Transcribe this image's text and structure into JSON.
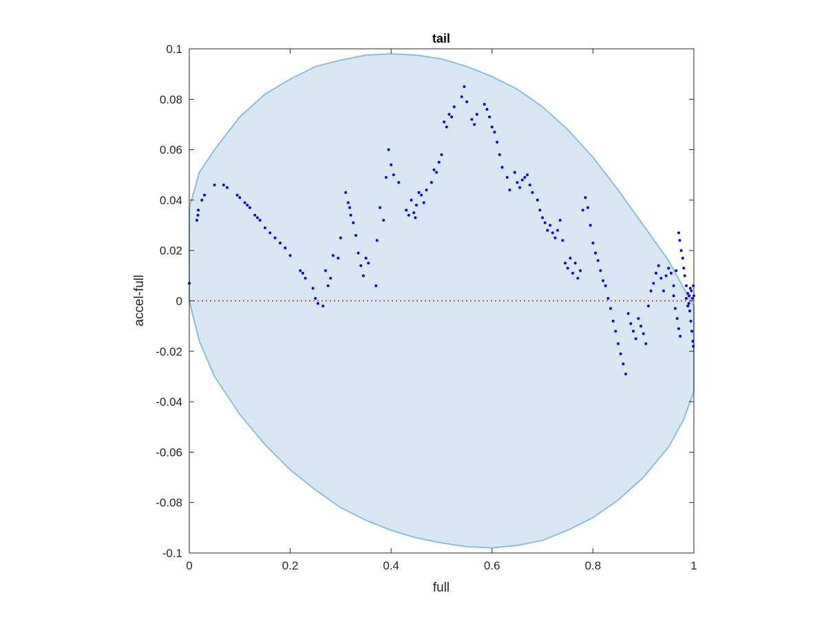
{
  "chart_data": {
    "type": "scatter",
    "title": "tail",
    "xlabel": "full",
    "ylabel": "accel-full",
    "xlim": [
      0,
      1
    ],
    "ylim": [
      -0.1,
      0.1
    ],
    "xticks": [
      "0",
      "0.2",
      "0.4",
      "0.6",
      "0.8",
      "1"
    ],
    "yticks": [
      "-0.1",
      "-0.08",
      "-0.06",
      "-0.04",
      "-0.02",
      "0",
      "0.02",
      "0.04",
      "0.06",
      "0.08",
      "0.1"
    ],
    "grid": false,
    "colors": {
      "points": "#0000ff",
      "band_fill": "#d8e7f3",
      "band_edge": "#88bde0",
      "zero_line": "#ff0000",
      "axes": "#262626"
    },
    "band": {
      "upper": [
        [
          0.0,
          0.037
        ],
        [
          0.02,
          0.051
        ],
        [
          0.05,
          0.06
        ],
        [
          0.1,
          0.073
        ],
        [
          0.15,
          0.082
        ],
        [
          0.2,
          0.088
        ],
        [
          0.25,
          0.093
        ],
        [
          0.3,
          0.0955
        ],
        [
          0.35,
          0.0975
        ],
        [
          0.4,
          0.098
        ],
        [
          0.45,
          0.0975
        ],
        [
          0.5,
          0.096
        ],
        [
          0.55,
          0.093
        ],
        [
          0.6,
          0.089
        ],
        [
          0.65,
          0.084
        ],
        [
          0.7,
          0.077
        ],
        [
          0.75,
          0.068
        ],
        [
          0.8,
          0.057
        ],
        [
          0.85,
          0.044
        ],
        [
          0.9,
          0.03
        ],
        [
          0.95,
          0.016
        ],
        [
          0.98,
          0.005
        ],
        [
          1.0,
          -0.002
        ]
      ],
      "lower": [
        [
          0.0,
          0.0
        ],
        [
          0.02,
          -0.016
        ],
        [
          0.05,
          -0.03
        ],
        [
          0.1,
          -0.045
        ],
        [
          0.15,
          -0.057
        ],
        [
          0.2,
          -0.067
        ],
        [
          0.25,
          -0.075
        ],
        [
          0.3,
          -0.082
        ],
        [
          0.35,
          -0.087
        ],
        [
          0.4,
          -0.091
        ],
        [
          0.45,
          -0.094
        ],
        [
          0.5,
          -0.096
        ],
        [
          0.55,
          -0.0975
        ],
        [
          0.6,
          -0.098
        ],
        [
          0.65,
          -0.097
        ],
        [
          0.7,
          -0.095
        ],
        [
          0.75,
          -0.091
        ],
        [
          0.8,
          -0.086
        ],
        [
          0.85,
          -0.079
        ],
        [
          0.9,
          -0.07
        ],
        [
          0.95,
          -0.058
        ],
        [
          0.98,
          -0.047
        ],
        [
          1.0,
          -0.036
        ]
      ]
    },
    "points": [
      [
        0.0,
        0.007
      ],
      [
        0.015,
        0.032
      ],
      [
        0.017,
        0.034
      ],
      [
        0.018,
        0.036
      ],
      [
        0.025,
        0.04
      ],
      [
        0.03,
        0.042
      ],
      [
        0.05,
        0.046
      ],
      [
        0.068,
        0.046
      ],
      [
        0.075,
        0.045
      ],
      [
        0.095,
        0.042
      ],
      [
        0.1,
        0.041
      ],
      [
        0.11,
        0.039
      ],
      [
        0.115,
        0.038
      ],
      [
        0.12,
        0.037
      ],
      [
        0.13,
        0.034
      ],
      [
        0.135,
        0.033
      ],
      [
        0.14,
        0.032
      ],
      [
        0.15,
        0.029
      ],
      [
        0.16,
        0.027
      ],
      [
        0.17,
        0.025
      ],
      [
        0.18,
        0.023
      ],
      [
        0.19,
        0.021
      ],
      [
        0.2,
        0.018
      ],
      [
        0.22,
        0.012
      ],
      [
        0.225,
        0.011
      ],
      [
        0.23,
        0.009
      ],
      [
        0.245,
        0.005
      ],
      [
        0.25,
        0.001
      ],
      [
        0.255,
        -0.001
      ],
      [
        0.265,
        -0.002
      ],
      [
        0.27,
        0.012
      ],
      [
        0.275,
        0.006
      ],
      [
        0.28,
        0.009
      ],
      [
        0.285,
        0.018
      ],
      [
        0.295,
        0.017
      ],
      [
        0.3,
        0.025
      ],
      [
        0.31,
        0.043
      ],
      [
        0.315,
        0.039
      ],
      [
        0.318,
        0.037
      ],
      [
        0.32,
        0.034
      ],
      [
        0.325,
        0.031
      ],
      [
        0.33,
        0.026
      ],
      [
        0.335,
        0.019
      ],
      [
        0.34,
        0.014
      ],
      [
        0.345,
        0.01
      ],
      [
        0.35,
        0.017
      ],
      [
        0.355,
        0.015
      ],
      [
        0.37,
        0.006
      ],
      [
        0.372,
        0.024
      ],
      [
        0.378,
        0.037
      ],
      [
        0.385,
        0.032
      ],
      [
        0.39,
        0.049
      ],
      [
        0.395,
        0.06
      ],
      [
        0.4,
        0.054
      ],
      [
        0.405,
        0.05
      ],
      [
        0.415,
        0.047
      ],
      [
        0.43,
        0.036
      ],
      [
        0.435,
        0.034
      ],
      [
        0.44,
        0.04
      ],
      [
        0.445,
        0.035
      ],
      [
        0.448,
        0.033
      ],
      [
        0.45,
        0.038
      ],
      [
        0.455,
        0.043
      ],
      [
        0.46,
        0.042
      ],
      [
        0.465,
        0.039
      ],
      [
        0.47,
        0.044
      ],
      [
        0.48,
        0.047
      ],
      [
        0.485,
        0.052
      ],
      [
        0.49,
        0.051
      ],
      [
        0.495,
        0.055
      ],
      [
        0.5,
        0.058
      ],
      [
        0.505,
        0.071
      ],
      [
        0.51,
        0.069
      ],
      [
        0.515,
        0.074
      ],
      [
        0.52,
        0.073
      ],
      [
        0.525,
        0.077
      ],
      [
        0.54,
        0.081
      ],
      [
        0.545,
        0.085
      ],
      [
        0.55,
        0.079
      ],
      [
        0.56,
        0.072
      ],
      [
        0.565,
        0.07
      ],
      [
        0.57,
        0.074
      ],
      [
        0.585,
        0.078
      ],
      [
        0.59,
        0.076
      ],
      [
        0.595,
        0.073
      ],
      [
        0.6,
        0.069
      ],
      [
        0.605,
        0.067
      ],
      [
        0.61,
        0.063
      ],
      [
        0.615,
        0.058
      ],
      [
        0.62,
        0.053
      ],
      [
        0.63,
        0.049
      ],
      [
        0.635,
        0.044
      ],
      [
        0.645,
        0.051
      ],
      [
        0.65,
        0.047
      ],
      [
        0.655,
        0.045
      ],
      [
        0.66,
        0.048
      ],
      [
        0.665,
        0.049
      ],
      [
        0.67,
        0.05
      ],
      [
        0.675,
        0.046
      ],
      [
        0.68,
        0.043
      ],
      [
        0.69,
        0.04
      ],
      [
        0.695,
        0.036
      ],
      [
        0.7,
        0.033
      ],
      [
        0.705,
        0.031
      ],
      [
        0.71,
        0.028
      ],
      [
        0.715,
        0.03
      ],
      [
        0.72,
        0.027
      ],
      [
        0.725,
        0.025
      ],
      [
        0.73,
        0.028
      ],
      [
        0.735,
        0.032
      ],
      [
        0.74,
        0.024
      ],
      [
        0.745,
        0.015
      ],
      [
        0.75,
        0.013
      ],
      [
        0.755,
        0.017
      ],
      [
        0.76,
        0.011
      ],
      [
        0.765,
        0.015
      ],
      [
        0.77,
        0.009
      ],
      [
        0.775,
        0.012
      ],
      [
        0.78,
        0.036
      ],
      [
        0.785,
        0.041
      ],
      [
        0.79,
        0.037
      ],
      [
        0.795,
        0.03
      ],
      [
        0.8,
        0.023
      ],
      [
        0.805,
        0.019
      ],
      [
        0.81,
        0.016
      ],
      [
        0.815,
        0.012
      ],
      [
        0.82,
        0.008
      ],
      [
        0.825,
        0.006
      ],
      [
        0.83,
        0.001
      ],
      [
        0.835,
        -0.003
      ],
      [
        0.84,
        -0.008
      ],
      [
        0.845,
        -0.012
      ],
      [
        0.85,
        -0.017
      ],
      [
        0.855,
        -0.021
      ],
      [
        0.86,
        -0.025
      ],
      [
        0.865,
        -0.029
      ],
      [
        0.87,
        -0.005
      ],
      [
        0.875,
        -0.009
      ],
      [
        0.88,
        -0.012
      ],
      [
        0.885,
        -0.015
      ],
      [
        0.89,
        -0.007
      ],
      [
        0.895,
        -0.01
      ],
      [
        0.9,
        -0.013
      ],
      [
        0.905,
        -0.017
      ],
      [
        0.91,
        -0.002
      ],
      [
        0.915,
        0.004
      ],
      [
        0.92,
        0.007
      ],
      [
        0.925,
        0.011
      ],
      [
        0.93,
        0.014
      ],
      [
        0.935,
        0.009
      ],
      [
        0.94,
        0.004
      ],
      [
        0.945,
        0.01
      ],
      [
        0.95,
        0.013
      ],
      [
        0.955,
        0.011
      ],
      [
        0.96,
        0.006
      ],
      [
        0.965,
        0.012
      ],
      [
        0.97,
        0.027
      ],
      [
        0.972,
        0.024
      ],
      [
        0.975,
        0.02
      ],
      [
        0.978,
        0.017
      ],
      [
        0.98,
        0.013
      ],
      [
        0.982,
        0.01
      ],
      [
        0.985,
        0.006
      ],
      [
        0.988,
        0.003
      ],
      [
        0.99,
        -0.001
      ],
      [
        0.992,
        -0.004
      ],
      [
        0.994,
        -0.008
      ],
      [
        0.996,
        -0.012
      ],
      [
        0.998,
        -0.016
      ],
      [
        0.999,
        -0.018
      ],
      [
        0.985,
        0.001
      ],
      [
        0.988,
        -0.002
      ],
      [
        0.991,
        0.002
      ],
      [
        0.993,
        0.005
      ],
      [
        0.995,
        0.004
      ],
      [
        0.997,
        0.001
      ],
      [
        0.999,
        0.006
      ],
      [
        1.0,
        0.002
      ],
      [
        0.96,
        0.002
      ],
      [
        0.963,
        -0.003
      ],
      [
        0.967,
        -0.007
      ],
      [
        0.97,
        -0.011
      ],
      [
        0.973,
        -0.014
      ]
    ]
  }
}
